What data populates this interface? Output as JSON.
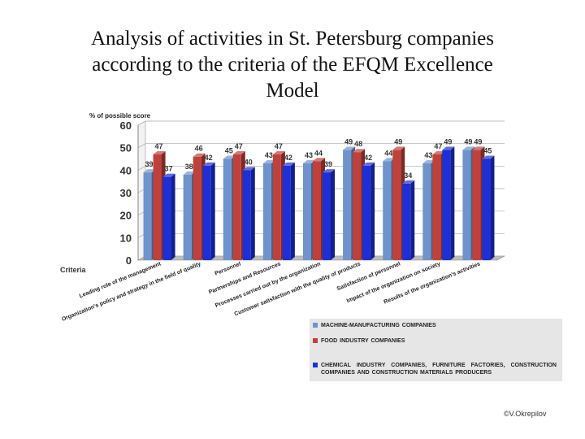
{
  "title_lines": [
    "Analysis of activities in St. Petersburg companies",
    "according to the criteria of the EFQM Excellence",
    "Model"
  ],
  "copyright": "©V.Okrepilov",
  "colors": {
    "grid": "#aaaaaa",
    "floor": "#bdbdbd"
  },
  "chart_data": {
    "type": "bar",
    "ylabel": "% of possible score",
    "xlabel": "Criteria",
    "ylim": [
      0,
      60
    ],
    "yticks": [
      0,
      10,
      20,
      30,
      40,
      50,
      60
    ],
    "categories": [
      "Leading role of the management",
      "Organization's policy and strategy in the field of quality",
      "Personnel",
      "Partnerships and Resources",
      "Processes carried out by the organization",
      "Customer satisfaction with the quality of products",
      "Satisfaction of personnel",
      "Impact of the organization on society",
      "Results of the organization's activities"
    ],
    "series": [
      {
        "name": "MACHINE-MANUFACTURING COMPANIES",
        "color": "#6e93cd",
        "values": [
          39,
          38,
          45,
          43,
          43,
          49,
          44,
          43,
          49
        ]
      },
      {
        "name": "FOOD INDUSTRY COMPANIES",
        "color": "#c0413c",
        "values": [
          47,
          46,
          47,
          47,
          44,
          48,
          49,
          47,
          49
        ]
      },
      {
        "name": "CHEMICAL INDUSTRY COMPANIES, FURNITURE FACTORIES, CONSTRUCTION COMPANIES AND CONSTRUCTION MATERIALS PRODUCERS",
        "color": "#1d2fd6",
        "values": [
          37,
          42,
          40,
          42,
          39,
          42,
          34,
          49,
          45
        ]
      }
    ]
  }
}
